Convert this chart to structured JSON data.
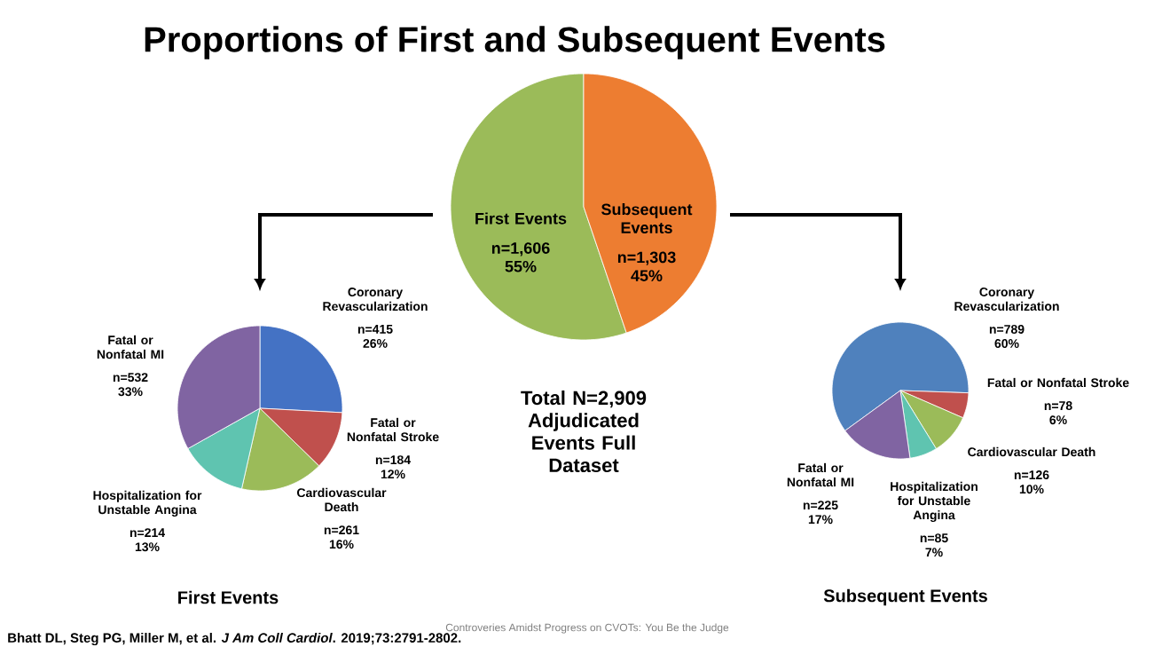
{
  "chart_data": [
    {
      "type": "pie",
      "title": "Proportions of First and Subsequent Events",
      "categories": [
        "First Events",
        "Subsequent Events"
      ],
      "values": [
        1606,
        1303
      ],
      "value_labels": [
        "n=1,606 55%",
        "n=1,303 45%"
      ],
      "colors": [
        "#9bbb59",
        "#ed7d31"
      ],
      "annotations": [
        "Total N=2,909 Adjudicated Events Full Dataset",
        "Bhatt DL, Steg PG, Miller M, et al. *J Am Coll Cardiol*. 2019;73:2791-2802.",
        "Controveries Amidst Progress on CVOTs: You Be the Judge"
      ]
    },
    {
      "type": "pie",
      "title": "First Events",
      "categories": [
        "Coronary Revascularization",
        "Fatal or Nonfatal Stroke",
        "Cardiovascular Death",
        "Hospitalization for Unstable Angina",
        "Fatal or Nonfatal MI"
      ],
      "values": [
        415,
        184,
        261,
        214,
        532
      ],
      "value_labels": [
        "n=415 26%",
        "n=184 12%",
        "n=261 16%",
        "n=214 13%",
        "n=532 33%"
      ],
      "colors": [
        "#4472c4",
        "#c0504d",
        "#9bbb59",
        "#5fc4b0",
        "#8064a2"
      ]
    },
    {
      "type": "pie",
      "title": "Subsequent Events",
      "categories": [
        "Coronary Revascularization",
        "Fatal or Nonfatal Stroke",
        "Cardiovascular Death",
        "Hospitalization for Unstable Angina",
        "Fatal or Nonfatal MI"
      ],
      "values": [
        789,
        78,
        126,
        85,
        225
      ],
      "value_labels": [
        "n=789 60%",
        "n=78 6%",
        "n=126 10%",
        "n=85 7%",
        "n=225 17%"
      ],
      "colors": [
        "#4f81bd",
        "#c0504d",
        "#9bbb59",
        "#5fc4b0",
        "#8064a2"
      ]
    }
  ]
}
